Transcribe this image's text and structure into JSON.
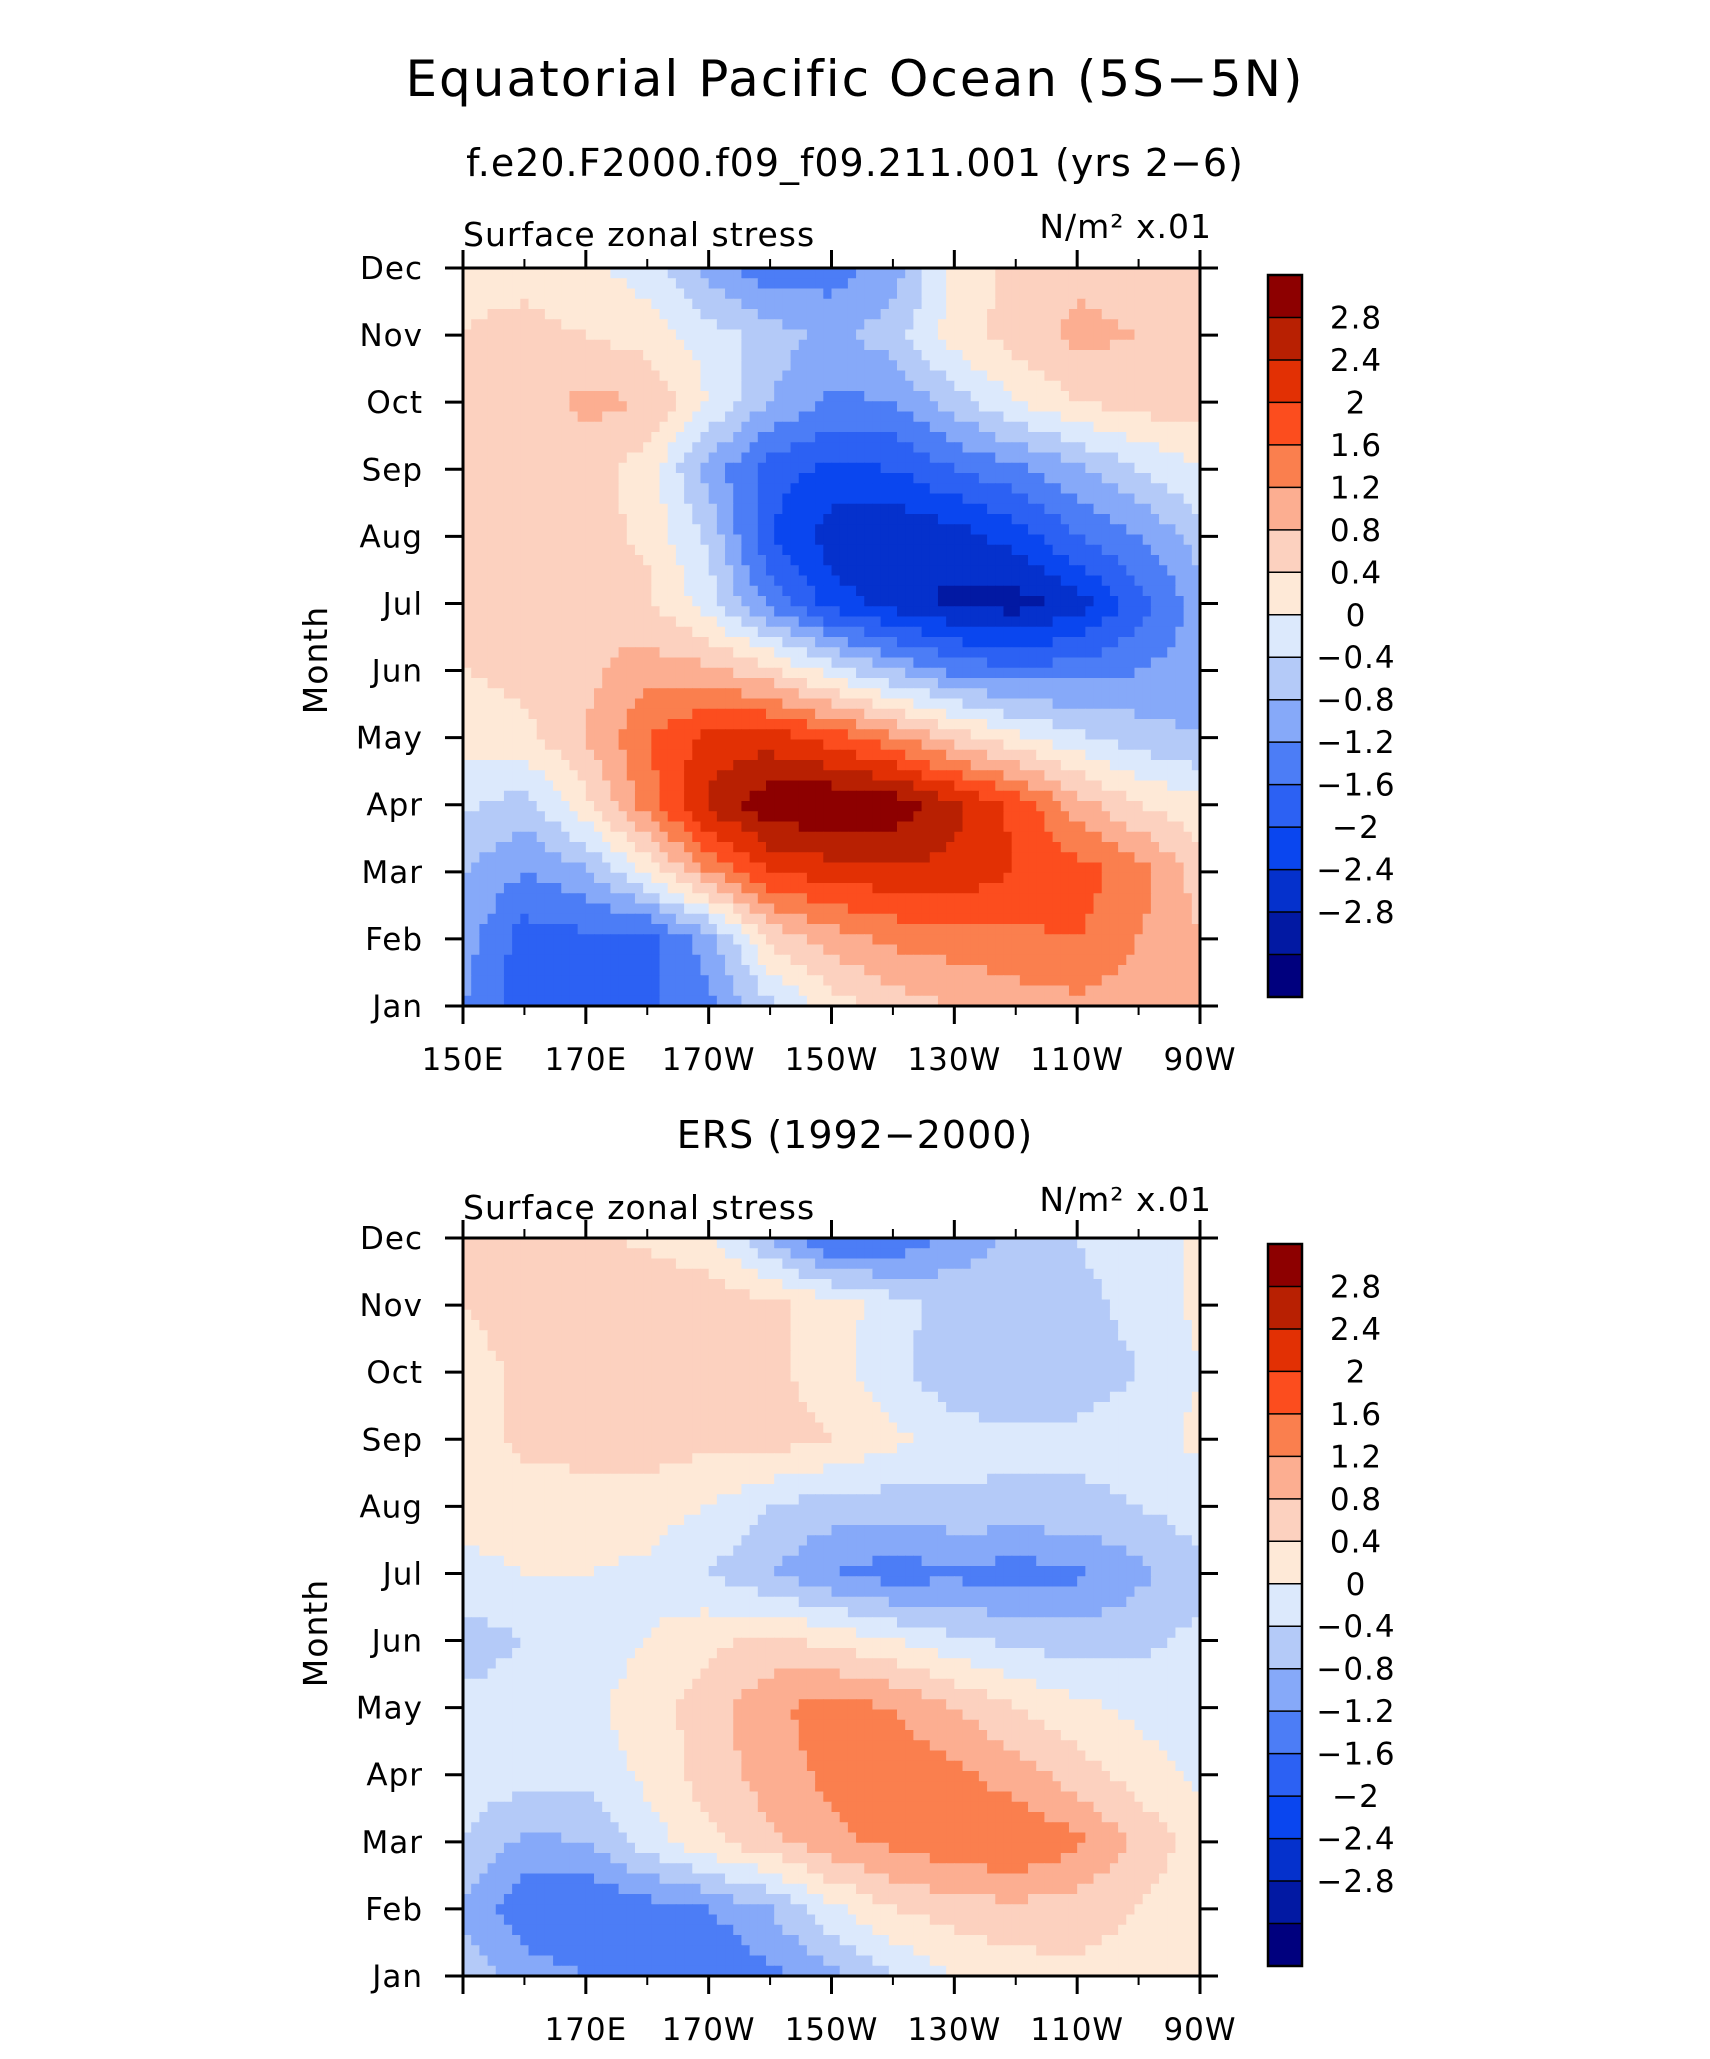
{
  "figure": {
    "title": "Equatorial Pacific Ocean (5S−5N)",
    "subtitle": "f.e20.F2000.f09_f09.211.001 (yrs 2−6)"
  },
  "chart_data": [
    {
      "type": "heatmap",
      "title": "",
      "left_label": "Surface zonal stress",
      "right_label": "N/m² x.01",
      "ylabel": "Month",
      "x_tick_labels": [
        "150E",
        "170E",
        "170W",
        "150W",
        "130W",
        "110W",
        "90W"
      ],
      "x_tick_lon": [
        150,
        170,
        190,
        210,
        230,
        250,
        270
      ],
      "xlim": [
        150,
        270
      ],
      "y_tick_labels": [
        "Jan",
        "Feb",
        "Mar",
        "Apr",
        "May",
        "Jun",
        "Jul",
        "Aug",
        "Sep",
        "Oct",
        "Nov",
        "Dec"
      ],
      "ylim": [
        1,
        12
      ],
      "colorbar_labels": [
        "2.8",
        "2.4",
        "2",
        "1.6",
        "1.2",
        "0.8",
        "0.4",
        "0",
        "−0.4",
        "−0.8",
        "−1.2",
        "−1.6",
        "−2",
        "−2.4",
        "−2.8"
      ],
      "field": {
        "lon": [
          150,
          160,
          170,
          180,
          190,
          200,
          210,
          220,
          230,
          240,
          250,
          260,
          270
        ],
        "values": [
          [
            -1.2,
            -1.8,
            -1.9,
            -1.7,
            -1.3,
            -0.5,
            0.2,
            0.6,
            0.8,
            1.0,
            1.1,
            1.0,
            0.9
          ],
          [
            -1.0,
            -1.8,
            -1.7,
            -1.8,
            -1.0,
            0.5,
            1.0,
            1.3,
            1.4,
            1.5,
            1.6,
            1.2,
            0.8
          ],
          [
            -0.8,
            -1.2,
            -0.9,
            0.1,
            1.2,
            2.0,
            2.2,
            2.3,
            2.3,
            2.0,
            1.8,
            1.4,
            0.6
          ],
          [
            -0.3,
            -0.6,
            0.3,
            1.4,
            2.5,
            3.1,
            3.2,
            3.1,
            2.5,
            1.9,
            1.0,
            0.4,
            0.1
          ],
          [
            0.2,
            0.3,
            0.8,
            1.6,
            2.1,
            2.2,
            1.8,
            1.3,
            0.6,
            0.1,
            -0.3,
            -0.6,
            -0.8
          ],
          [
            0.4,
            0.5,
            0.7,
            1.0,
            0.9,
            0.5,
            -0.2,
            -0.8,
            -1.3,
            -1.5,
            -1.4,
            -1.2,
            -1.0
          ],
          [
            0.6,
            0.7,
            0.8,
            0.5,
            -0.2,
            -1.3,
            -2.2,
            -2.6,
            -2.9,
            -3.0,
            -2.6,
            -1.8,
            -1.0
          ],
          [
            0.6,
            0.7,
            0.6,
            0.3,
            -0.5,
            -2.0,
            -2.6,
            -2.8,
            -2.6,
            -2.2,
            -1.6,
            -1.2,
            -0.6
          ],
          [
            0.5,
            0.6,
            0.6,
            0.2,
            -1.0,
            -1.8,
            -2.1,
            -2.0,
            -1.6,
            -1.3,
            -0.9,
            -0.4,
            0.0
          ],
          [
            0.5,
            0.6,
            0.9,
            0.8,
            0.0,
            -0.8,
            -1.3,
            -1.2,
            -0.6,
            0.0,
            0.4,
            0.6,
            0.6
          ],
          [
            0.4,
            0.5,
            0.4,
            0.2,
            -0.2,
            -0.6,
            -0.9,
            -0.6,
            0.2,
            0.6,
            0.9,
            0.8,
            0.6
          ],
          [
            0.3,
            0.3,
            0.1,
            -0.2,
            -1.0,
            -1.5,
            -1.4,
            -1.0,
            0.1,
            0.5,
            0.7,
            0.6,
            0.4
          ]
        ]
      }
    },
    {
      "type": "heatmap",
      "title": "ERS (1992−2000)",
      "left_label": "Surface zonal stress",
      "right_label": "N/m² x.01",
      "ylabel": "Month",
      "x_tick_labels": [
        "170E",
        "170W",
        "150W",
        "130W",
        "110W",
        "90W"
      ],
      "x_tick_lon": [
        170,
        190,
        210,
        230,
        250,
        270
      ],
      "xlim": [
        150,
        270
      ],
      "y_tick_labels": [
        "Jan",
        "Feb",
        "Mar",
        "Apr",
        "May",
        "Jun",
        "Jul",
        "Aug",
        "Sep",
        "Oct",
        "Nov",
        "Dec"
      ],
      "ylim": [
        1,
        12
      ],
      "colorbar_labels": [
        "2.8",
        "2.4",
        "2",
        "1.6",
        "1.2",
        "0.8",
        "0.4",
        "0",
        "−0.4",
        "−0.8",
        "−1.2",
        "−1.6",
        "−2",
        "−2.4",
        "−2.8"
      ],
      "field": {
        "lon": [
          150,
          160,
          170,
          180,
          190,
          200,
          210,
          220,
          230,
          240,
          250,
          260,
          270
        ],
        "values": [
          [
            -0.5,
            -1.0,
            -1.2,
            -1.5,
            -1.6,
            -1.3,
            -0.9,
            -0.4,
            0.0,
            0.2,
            0.3,
            0.2,
            0.0
          ],
          [
            -0.9,
            -1.5,
            -1.6,
            -1.4,
            -1.2,
            -0.8,
            -0.1,
            0.4,
            0.6,
            0.7,
            0.6,
            0.4,
            0.1
          ],
          [
            -0.4,
            -0.9,
            -0.8,
            -0.2,
            0.3,
            0.7,
            1.1,
            1.3,
            1.5,
            1.6,
            1.3,
            0.7,
            0.2
          ],
          [
            -0.2,
            -0.2,
            -0.3,
            0.1,
            0.6,
            1.0,
            1.3,
            1.5,
            1.3,
            1.0,
            0.6,
            0.2,
            -0.1
          ],
          [
            -0.3,
            -0.2,
            -0.1,
            0.2,
            0.6,
            1.1,
            1.4,
            1.2,
            0.8,
            0.4,
            0.1,
            -0.1,
            -0.2
          ],
          [
            -0.6,
            -0.4,
            -0.2,
            0.0,
            0.3,
            0.5,
            0.3,
            0.0,
            -0.3,
            -0.5,
            -0.6,
            -0.5,
            -0.3
          ],
          [
            -0.1,
            0.0,
            0.0,
            -0.1,
            -0.4,
            -0.8,
            -1.2,
            -1.4,
            -1.3,
            -1.4,
            -1.3,
            -0.9,
            -0.5
          ],
          [
            0.1,
            0.2,
            0.3,
            0.2,
            0.0,
            -0.4,
            -0.6,
            -0.6,
            -0.5,
            -0.5,
            -0.5,
            -0.4,
            -0.2
          ],
          [
            0.2,
            0.5,
            0.5,
            0.6,
            0.5,
            0.6,
            0.4,
            0.1,
            -0.2,
            -0.3,
            -0.3,
            -0.2,
            0.1
          ],
          [
            0.2,
            0.5,
            0.6,
            0.7,
            0.6,
            0.5,
            0.2,
            -0.3,
            -0.7,
            -0.8,
            -0.6,
            -0.4,
            0.0
          ],
          [
            0.4,
            0.6,
            0.7,
            0.8,
            0.8,
            0.5,
            0.2,
            -0.2,
            -0.6,
            -0.7,
            -0.5,
            -0.3,
            0.1
          ],
          [
            0.6,
            0.6,
            0.5,
            0.3,
            0.0,
            -0.8,
            -1.7,
            -1.6,
            -1.0,
            -0.7,
            -0.4,
            -0.2,
            0.1
          ]
        ]
      }
    }
  ],
  "colors": {
    "levels": [
      -3.2,
      -2.8,
      -2.4,
      -2.0,
      -1.6,
      -1.2,
      -0.8,
      -0.4,
      0.0,
      0.4,
      0.8,
      1.2,
      1.6,
      2.0,
      2.4,
      2.8
    ],
    "palette": [
      "#00007e",
      "#0219a3",
      "#0531cc",
      "#0a46ef",
      "#2c61f3",
      "#4c7df6",
      "#86a9f9",
      "#b4caf8",
      "#dce9fc",
      "#fee9d7",
      "#fcd1bf",
      "#fcae91",
      "#fa7f4e",
      "#fc4d1e",
      "#e23004",
      "#b82002",
      "#8d0000"
    ]
  }
}
